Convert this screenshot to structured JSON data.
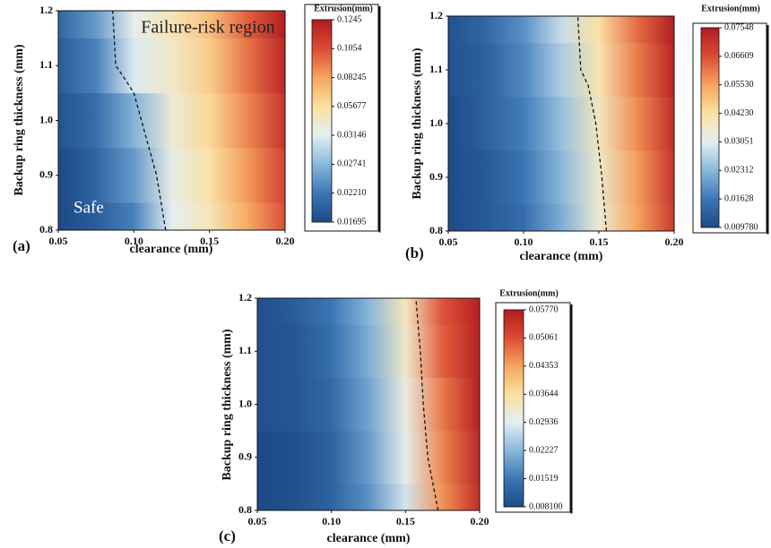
{
  "chart_data": [
    {
      "type": "contour",
      "panel_label": "(a)",
      "xlabel": "clearance (mm)",
      "ylabel": "Backup ring thickness (mm)",
      "xlim": [
        0.05,
        0.2
      ],
      "ylim": [
        0.8,
        1.2
      ],
      "xticks": [
        0.05,
        {
          "value": 0.1,
          "label": "0.10"
        },
        0.15,
        {
          "value": 0.2,
          "label": "0.20"
        }
      ],
      "yticks": [
        0.8,
        0.9,
        {
          "value": 1.0,
          "label": "1.0"
        },
        1.1,
        1.2
      ],
      "x": [
        0.05,
        0.075,
        0.1,
        0.125,
        0.15,
        0.175,
        0.2
      ],
      "y": [
        0.8,
        0.9,
        1.0,
        1.1,
        1.2
      ],
      "z": [
        [
          0.017,
          0.019,
          0.023,
          0.032,
          0.05,
          0.08,
          0.105
        ],
        [
          0.017,
          0.02,
          0.025,
          0.035,
          0.055,
          0.085,
          0.11
        ],
        [
          0.018,
          0.021,
          0.027,
          0.04,
          0.06,
          0.09,
          0.115
        ],
        [
          0.019,
          0.023,
          0.031,
          0.045,
          0.065,
          0.095,
          0.12
        ],
        [
          0.02,
          0.025,
          0.034,
          0.05,
          0.07,
          0.1,
          0.124
        ]
      ],
      "boundary": {
        "x": [
          0.121,
          0.118,
          0.115,
          0.11,
          0.105,
          0.1,
          0.093,
          0.088,
          0.086
        ],
        "y": [
          0.8,
          0.85,
          0.9,
          0.95,
          1.0,
          1.05,
          1.08,
          1.1,
          1.2
        ]
      },
      "annotations": [
        "Failure-risk region",
        "Safe"
      ],
      "colorbar": {
        "title": "Extrusion(mm)",
        "ticks": [
          0.01695,
          {
            "value": 0.0221,
            "label": "0.02210"
          },
          0.02741,
          0.03146,
          0.05677,
          0.08245,
          0.1054,
          0.1245
        ],
        "colors": [
          "#1d4a87",
          "#3b76b5",
          "#8ab8db",
          "#e3eff3",
          "#fbe1a0",
          "#f6a55e",
          "#dc4b36",
          "#b11b1e"
        ]
      }
    },
    {
      "type": "contour",
      "panel_label": "(b)",
      "xlabel": "clearance (mm)",
      "ylabel": "Backup ring thickness (mm)",
      "xlim": [
        0.05,
        0.2
      ],
      "ylim": [
        0.8,
        1.2
      ],
      "xticks": [
        0.05,
        {
          "value": 0.1,
          "label": "0.10"
        },
        0.15,
        {
          "value": 0.2,
          "label": "0.20"
        }
      ],
      "yticks": [
        0.8,
        0.9,
        {
          "value": 1.0,
          "label": "1.0"
        },
        1.1,
        1.2
      ],
      "x": [
        0.05,
        0.075,
        0.1,
        0.125,
        0.15,
        0.175,
        0.2
      ],
      "y": [
        0.8,
        0.9,
        1.0,
        1.1,
        1.2
      ],
      "z": [
        [
          0.01,
          0.012,
          0.015,
          0.022,
          0.035,
          0.055,
          0.07
        ],
        [
          0.01,
          0.012,
          0.016,
          0.023,
          0.036,
          0.056,
          0.071
        ],
        [
          0.01,
          0.013,
          0.017,
          0.024,
          0.038,
          0.058,
          0.072
        ],
        [
          0.011,
          0.013,
          0.018,
          0.026,
          0.04,
          0.06,
          0.074
        ],
        [
          0.011,
          0.014,
          0.019,
          0.028,
          0.042,
          0.062,
          0.075
        ]
      ],
      "boundary": {
        "x": [
          0.155,
          0.152,
          0.148,
          0.143,
          0.138,
          0.136
        ],
        "y": [
          0.8,
          0.9,
          1.0,
          1.07,
          1.1,
          1.2
        ]
      },
      "colorbar": {
        "title": "Extrusion(mm)",
        "ticks": [
          {
            "value": 0.00978,
            "label": "0.009780"
          },
          0.01628,
          0.02312,
          0.03051,
          {
            "value": 0.0423,
            "label": "0.04230"
          },
          {
            "value": 0.0553,
            "label": "0.05530"
          },
          0.06609,
          0.07548
        ],
        "colors": [
          "#1d4a87",
          "#3b76b5",
          "#8ab8db",
          "#e3eff3",
          "#fbe1a0",
          "#f6a55e",
          "#dc4b36",
          "#b11b1e"
        ]
      }
    },
    {
      "type": "contour",
      "panel_label": "(c)",
      "xlabel": "clearance (mm)",
      "ylabel": "Backup ring thickness (mm)",
      "xlim": [
        0.05,
        0.2
      ],
      "ylim": [
        0.8,
        1.2
      ],
      "xticks": [
        0.05,
        {
          "value": 0.1,
          "label": "0.10"
        },
        0.15,
        {
          "value": 0.2,
          "label": "0.20"
        }
      ],
      "yticks": [
        0.8,
        0.9,
        {
          "value": 1.0,
          "label": "1.0"
        },
        1.1,
        1.2
      ],
      "x": [
        0.05,
        0.075,
        0.1,
        0.125,
        0.15,
        0.175,
        0.2
      ],
      "y": [
        0.8,
        0.9,
        1.0,
        1.1,
        1.2
      ],
      "z": [
        [
          0.008,
          0.009,
          0.012,
          0.018,
          0.028,
          0.045,
          0.055
        ],
        [
          0.008,
          0.009,
          0.012,
          0.019,
          0.03,
          0.046,
          0.056
        ],
        [
          0.009,
          0.01,
          0.013,
          0.02,
          0.031,
          0.047,
          0.057
        ],
        [
          0.009,
          0.01,
          0.014,
          0.021,
          0.033,
          0.049,
          0.057
        ],
        [
          0.009,
          0.011,
          0.015,
          0.022,
          0.034,
          0.05,
          0.057
        ]
      ],
      "boundary": {
        "x": [
          0.172,
          0.165,
          0.162,
          0.16,
          0.157
        ],
        "y": [
          0.8,
          0.9,
          1.0,
          1.1,
          1.2
        ]
      },
      "colorbar": {
        "title": "Extrusion(mm)",
        "ticks": [
          {
            "value": 0.0081,
            "label": "0.008100"
          },
          0.01519,
          0.02227,
          0.02936,
          0.03644,
          0.04353,
          0.05061,
          {
            "value": 0.0577,
            "label": "0.05770"
          }
        ],
        "colors": [
          "#1d4a87",
          "#3b76b5",
          "#8ab8db",
          "#e3eff3",
          "#fbe1a0",
          "#f6a55e",
          "#dc4b36",
          "#b11b1e"
        ]
      }
    }
  ]
}
